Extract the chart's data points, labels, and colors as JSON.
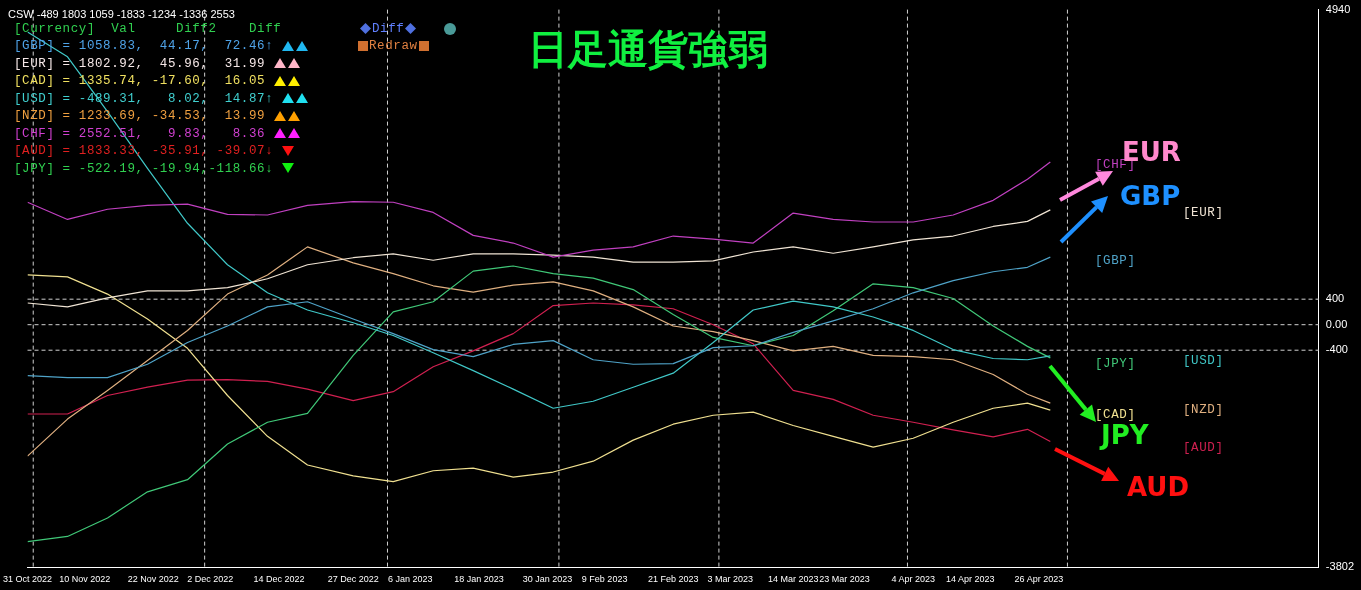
{
  "chart_data": {
    "type": "line",
    "title": "日足通貨強弱",
    "x": [
      "2022-10-31",
      "2022-11-07",
      "2022-11-14",
      "2022-11-21",
      "2022-11-28",
      "2022-12-05",
      "2022-12-12",
      "2022-12-19",
      "2022-12-27",
      "2023-01-03",
      "2023-01-10",
      "2023-01-17",
      "2023-01-24",
      "2023-01-31",
      "2023-02-07",
      "2023-02-14",
      "2023-02-21",
      "2023-02-28",
      "2023-03-07",
      "2023-03-14",
      "2023-03-21",
      "2023-03-28",
      "2023-04-04",
      "2023-04-11",
      "2023-04-18",
      "2023-04-24",
      "2023-04-28"
    ],
    "xlim": [
      "2022-10-31",
      "2023-06-14"
    ],
    "xticks": [
      {
        "value": "2022-10-31",
        "label": "31 Oct 2022"
      },
      {
        "value": "2022-11-10",
        "label": "10 Nov 2022"
      },
      {
        "value": "2022-11-22",
        "label": "22 Nov 2022"
      },
      {
        "value": "2022-12-02",
        "label": "2 Dec 2022"
      },
      {
        "value": "2022-12-14",
        "label": "14 Dec 2022"
      },
      {
        "value": "2022-12-27",
        "label": "27 Dec 2022"
      },
      {
        "value": "2023-01-06",
        "label": "6 Jan 2023"
      },
      {
        "value": "2023-01-18",
        "label": "18 Jan 2023"
      },
      {
        "value": "2023-01-30",
        "label": "30 Jan 2023"
      },
      {
        "value": "2023-02-09",
        "label": "9 Feb 2023"
      },
      {
        "value": "2023-02-21",
        "label": "21 Feb 2023"
      },
      {
        "value": "2023-03-03",
        "label": "3 Mar 2023"
      },
      {
        "value": "2023-03-14",
        "label": "14 Mar 2023"
      },
      {
        "value": "2023-03-23",
        "label": "23 Mar 2023"
      },
      {
        "value": "2023-04-04",
        "label": "4 Apr 2023"
      },
      {
        "value": "2023-04-14",
        "label": "14 Apr 2023"
      },
      {
        "value": "2023-04-26",
        "label": "26 Apr 2023"
      }
    ],
    "ylim": [
      -3802,
      4940
    ],
    "yticks": [
      4940,
      400,
      {
        "value": 0,
        "label": "0.00"
      },
      -400,
      -3802
    ],
    "grid": false,
    "legend": false,
    "marker": "none",
    "line_style": "solid",
    "series": [
      {
        "color": "#c040c0",
        "values": [
          1920,
          1650,
          1810,
          1870,
          1890,
          1730,
          1720,
          1870,
          1930,
          1920,
          1760,
          1400,
          1280,
          1060,
          1170,
          1220,
          1390,
          1340,
          1280,
          1750,
          1650,
          1610,
          1610,
          1720,
          1950,
          2280,
          2550
        ]
      },
      {
        "color": "#f0e4d4",
        "values": [
          340,
          280,
          420,
          530,
          530,
          580,
          720,
          940,
          1050,
          1110,
          1010,
          1110,
          1110,
          1090,
          1060,
          980,
          980,
          1000,
          1140,
          1220,
          1120,
          1220,
          1330,
          1390,
          1540,
          1620,
          1800
        ]
      },
      {
        "color": "#4fa3c8",
        "values": [
          -800,
          -830,
          -830,
          -620,
          -280,
          -20,
          280,
          360,
          90,
          -140,
          -390,
          -500,
          -310,
          -250,
          -550,
          -620,
          -610,
          -360,
          -330,
          -120,
          60,
          250,
          500,
          690,
          830,
          900,
          1060
        ]
      },
      {
        "color": "#40c8c8",
        "values": [
          4590,
          4200,
          3340,
          2450,
          1590,
          940,
          500,
          230,
          30,
          -170,
          -440,
          -720,
          -1010,
          -1310,
          -1200,
          -980,
          -760,
          -280,
          230,
          370,
          280,
          120,
          -90,
          -390,
          -530,
          -550,
          -490
        ]
      },
      {
        "color": "#40c878",
        "values": [
          -3400,
          -3320,
          -3030,
          -2620,
          -2430,
          -1870,
          -1530,
          -1390,
          -480,
          200,
          360,
          840,
          920,
          800,
          730,
          550,
          160,
          -200,
          -330,
          -170,
          220,
          640,
          580,
          410,
          -20,
          -340,
          -520
        ]
      },
      {
        "color": "#e0b080",
        "values": [
          -2060,
          -1480,
          -1030,
          -560,
          -90,
          480,
          780,
          1220,
          970,
          800,
          610,
          510,
          620,
          670,
          530,
          280,
          -20,
          -110,
          -250,
          -410,
          -340,
          -480,
          -500,
          -550,
          -780,
          -1090,
          -1230
        ]
      },
      {
        "color": "#f0e090",
        "values": [
          780,
          750,
          480,
          90,
          -370,
          -1110,
          -1750,
          -2200,
          -2370,
          -2460,
          -2290,
          -2250,
          -2390,
          -2310,
          -2140,
          -1810,
          -1560,
          -1420,
          -1370,
          -1580,
          -1750,
          -1920,
          -1780,
          -1530,
          -1310,
          -1230,
          -1340
        ]
      },
      {
        "color": "#d02050",
        "values": [
          -1400,
          -1400,
          -1110,
          -980,
          -870,
          -860,
          -890,
          -1010,
          -1190,
          -1050,
          -660,
          -410,
          -140,
          300,
          340,
          310,
          250,
          0,
          -300,
          -1030,
          -1170,
          -1420,
          -1530,
          -1650,
          -1760,
          -1640,
          -1830
        ]
      }
    ],
    "ref_lines": [
      {
        "axis": "y",
        "value": 400,
        "color": "#d0d0d0",
        "line_style": "dashed"
      },
      {
        "axis": "y",
        "value": 0,
        "color": "#d0d0d0",
        "line_style": "dashed"
      },
      {
        "axis": "y",
        "value": -400,
        "color": "#d0d0d0",
        "line_style": "dashed"
      },
      {
        "axis": "x",
        "value": "2022-11-01",
        "color": "#d0d0d0",
        "line_style": "dashed"
      },
      {
        "axis": "x",
        "value": "2022-12-01",
        "color": "#d0d0d0",
        "line_style": "dashed"
      },
      {
        "axis": "x",
        "value": "2023-01-02",
        "color": "#d0d0d0",
        "line_style": "dashed"
      },
      {
        "axis": "x",
        "value": "2023-02-01",
        "color": "#d0d0d0",
        "line_style": "dashed"
      },
      {
        "axis": "x",
        "value": "2023-03-01",
        "color": "#d0d0d0",
        "line_style": "dashed"
      },
      {
        "axis": "x",
        "value": "2023-04-03",
        "color": "#d0d0d0",
        "line_style": "dashed"
      },
      {
        "axis": "x",
        "value": "2023-05-01",
        "color": "#d0d0d0",
        "line_style": "dashed"
      }
    ],
    "annotations": [
      "CSW -489 1803 1059 -1833 -1234 -1336 2553",
      "[Currency]  Val     Diff2    Diff",
      "[GBP] = 1058.83,  44.17,  72.46↑",
      "[EUR] = 1802.92,  45.96,  31.99",
      "[CAD] = 1335.74, -17.60,  16.05",
      "[USD] = -489.31,   8.02,  14.87↑",
      "[NZD] = 1233.69, -34.53,  13.99",
      "[CHF] = 2552.51,   9.83,   8.36",
      "[AUD] = 1833.33, -35.91, -39.07↓",
      "[JPY] = -522.19, -19.94,-118.66↓",
      "Diff",
      "Redraw",
      "[CHF]",
      "[EUR]",
      "[GBP]",
      "[JPY]",
      "[USD]",
      "[CAD]",
      "[NZD]",
      "[AUD]",
      "EUR",
      "GBP",
      "JPY",
      "AUD"
    ]
  }
}
